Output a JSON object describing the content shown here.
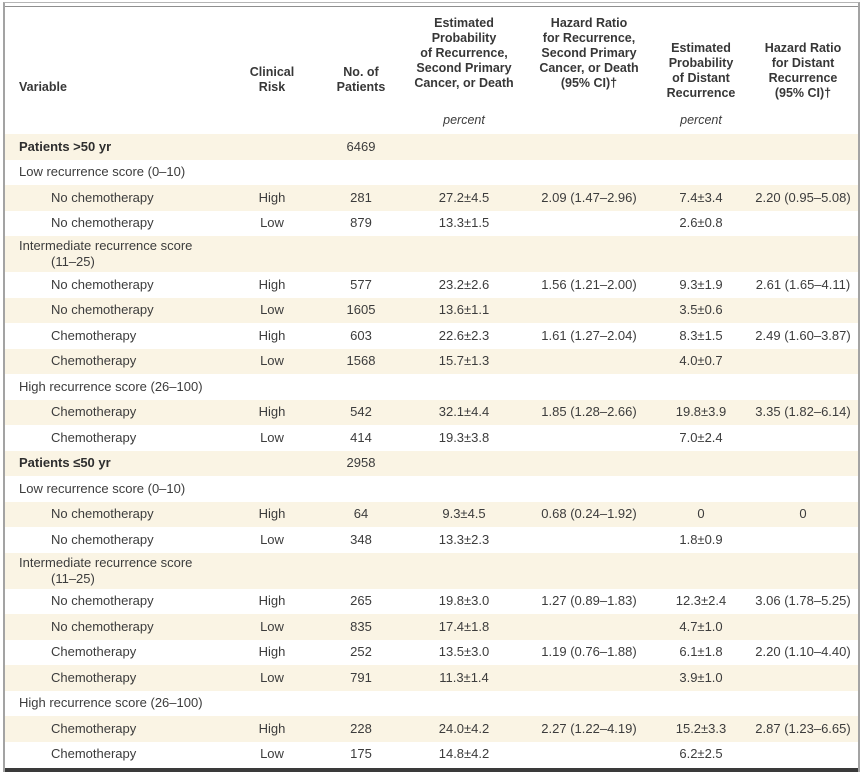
{
  "table": {
    "columns": [
      {
        "label": "Variable"
      },
      {
        "label": "Clinical\nRisk"
      },
      {
        "label": "No. of\nPatients"
      },
      {
        "label": "Estimated\nProbability\nof Recurrence,\nSecond Primary\nCancer, or Death"
      },
      {
        "label": "Hazard Ratio\nfor Recurrence,\nSecond Primary\nCancer, or Death\n(95% CI)†"
      },
      {
        "label": "Estimated\nProbability\nof Distant\nRecurrence"
      },
      {
        "label": "Hazard Ratio\nfor Distant\nRecurrence\n(95% CI)†"
      }
    ],
    "units": {
      "est_prob": "percent",
      "est_prob_distant": "percent"
    },
    "colors": {
      "shade_row": "#faf4e4",
      "text": "#3c3c3c",
      "bottom_rule": "#3a3a3a"
    },
    "rows": [
      {
        "variable": "Patients >50 yr",
        "bold": true,
        "patients": "6469",
        "shade": true
      },
      {
        "variable": "Low recurrence score (0–10)",
        "shade": false
      },
      {
        "variable": "No chemotherapy",
        "indent": 1,
        "clinical_risk": "High",
        "patients": "281",
        "est_prob": "27.2±4.5",
        "hr": "2.09 (1.47–2.96)",
        "est_prob_distant": "7.4±3.4",
        "hr_distant": "2.20 (0.95–5.08)",
        "shade": true
      },
      {
        "variable": "No chemotherapy",
        "indent": 1,
        "clinical_risk": "Low",
        "patients": "879",
        "est_prob": "13.3±1.5",
        "est_prob_distant": "2.6±0.8",
        "shade": false
      },
      {
        "variable": "Intermediate recurrence score\n(11–25)",
        "shade": true
      },
      {
        "variable": "No chemotherapy",
        "indent": 1,
        "clinical_risk": "High",
        "patients": "577",
        "est_prob": "23.2±2.6",
        "hr": "1.56 (1.21–2.00)",
        "est_prob_distant": "9.3±1.9",
        "hr_distant": "2.61 (1.65–4.11)",
        "shade": false
      },
      {
        "variable": "No chemotherapy",
        "indent": 1,
        "clinical_risk": "Low",
        "patients": "1605",
        "est_prob": "13.6±1.1",
        "est_prob_distant": "3.5±0.6",
        "shade": true
      },
      {
        "variable": "Chemotherapy",
        "indent": 1,
        "clinical_risk": "High",
        "patients": "603",
        "est_prob": "22.6±2.3",
        "hr": "1.61 (1.27–2.04)",
        "est_prob_distant": "8.3±1.5",
        "hr_distant": "2.49 (1.60–3.87)",
        "shade": false
      },
      {
        "variable": "Chemotherapy",
        "indent": 1,
        "clinical_risk": "Low",
        "patients": "1568",
        "est_prob": "15.7±1.3",
        "est_prob_distant": "4.0±0.7",
        "shade": true
      },
      {
        "variable": "High recurrence score (26–100)",
        "shade": false
      },
      {
        "variable": "Chemotherapy",
        "indent": 1,
        "clinical_risk": "High",
        "patients": "542",
        "est_prob": "32.1±4.4",
        "hr": "1.85 (1.28–2.66)",
        "est_prob_distant": "19.8±3.9",
        "hr_distant": "3.35 (1.82–6.14)",
        "shade": true
      },
      {
        "variable": "Chemotherapy",
        "indent": 1,
        "clinical_risk": "Low",
        "patients": "414",
        "est_prob": "19.3±3.8",
        "est_prob_distant": "7.0±2.4",
        "shade": false
      },
      {
        "variable": "Patients ≤50 yr",
        "bold": true,
        "patients": "2958",
        "shade": true
      },
      {
        "variable": "Low recurrence score (0–10)",
        "shade": false
      },
      {
        "variable": "No chemotherapy",
        "indent": 1,
        "clinical_risk": "High",
        "patients": "64",
        "est_prob": "9.3±4.5",
        "hr": "0.68 (0.24–1.92)",
        "est_prob_distant": "0",
        "hr_distant": "0",
        "shade": true
      },
      {
        "variable": "No chemotherapy",
        "indent": 1,
        "clinical_risk": "Low",
        "patients": "348",
        "est_prob": "13.3±2.3",
        "est_prob_distant": "1.8±0.9",
        "shade": false
      },
      {
        "variable": "Intermediate recurrence score\n(11–25)",
        "shade": true
      },
      {
        "variable": "No chemotherapy",
        "indent": 1,
        "clinical_risk": "High",
        "patients": "265",
        "est_prob": "19.8±3.0",
        "hr": "1.27 (0.89–1.83)",
        "est_prob_distant": "12.3±2.4",
        "hr_distant": "3.06 (1.78–5.25)",
        "shade": false
      },
      {
        "variable": "No chemotherapy",
        "indent": 1,
        "clinical_risk": "Low",
        "patients": "835",
        "est_prob": "17.4±1.8",
        "est_prob_distant": "4.7±1.0",
        "shade": true
      },
      {
        "variable": "Chemotherapy",
        "indent": 1,
        "clinical_risk": "High",
        "patients": "252",
        "est_prob": "13.5±3.0",
        "hr": "1.19 (0.76–1.88)",
        "est_prob_distant": "6.1±1.8",
        "hr_distant": "2.20 (1.10–4.40)",
        "shade": false
      },
      {
        "variable": "Chemotherapy",
        "indent": 1,
        "clinical_risk": "Low",
        "patients": "791",
        "est_prob": "11.3±1.4",
        "est_prob_distant": "3.9±1.0",
        "shade": true
      },
      {
        "variable": "High recurrence score (26–100)",
        "shade": false
      },
      {
        "variable": "Chemotherapy",
        "indent": 1,
        "clinical_risk": "High",
        "patients": "228",
        "est_prob": "24.0±4.2",
        "hr": "2.27 (1.22–4.19)",
        "est_prob_distant": "15.2±3.3",
        "hr_distant": "2.87 (1.23–6.65)",
        "shade": true
      },
      {
        "variable": "Chemotherapy",
        "indent": 1,
        "clinical_risk": "Low",
        "patients": "175",
        "est_prob": "14.8±4.2",
        "est_prob_distant": "6.2±2.5",
        "shade": false
      }
    ]
  }
}
